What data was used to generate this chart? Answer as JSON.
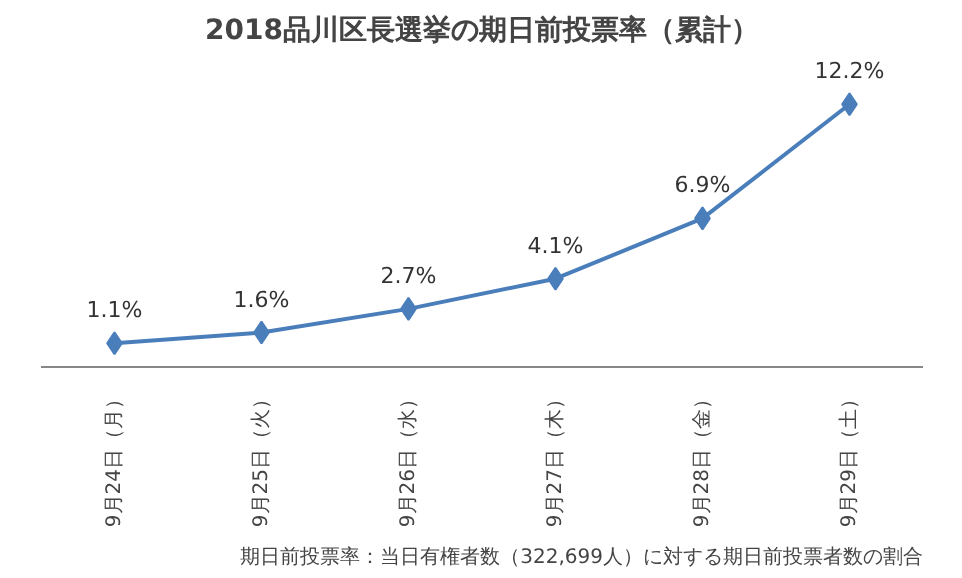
{
  "chart_data": {
    "type": "line",
    "title": "2018品川区長選挙の期日前投票率（累計）",
    "categories": [
      "9月24日（月）",
      "9月25日（火）",
      "9月26日（水）",
      "9月27日（木）",
      "9月28日（金）",
      "9月29日（土）"
    ],
    "values": [
      1.1,
      1.6,
      2.7,
      4.1,
      6.9,
      12.2
    ],
    "value_labels": [
      "1.1%",
      "1.6%",
      "2.7%",
      "4.1%",
      "6.9%",
      "12.2%"
    ],
    "color": "#4a7ebb",
    "marker": "diamond",
    "line_style": "solid",
    "grid": false,
    "tick_labels": "x",
    "annotations": [
      "期日前投票率：当日有権者数（322,699人）に対する期日前投票者数の割合"
    ]
  }
}
